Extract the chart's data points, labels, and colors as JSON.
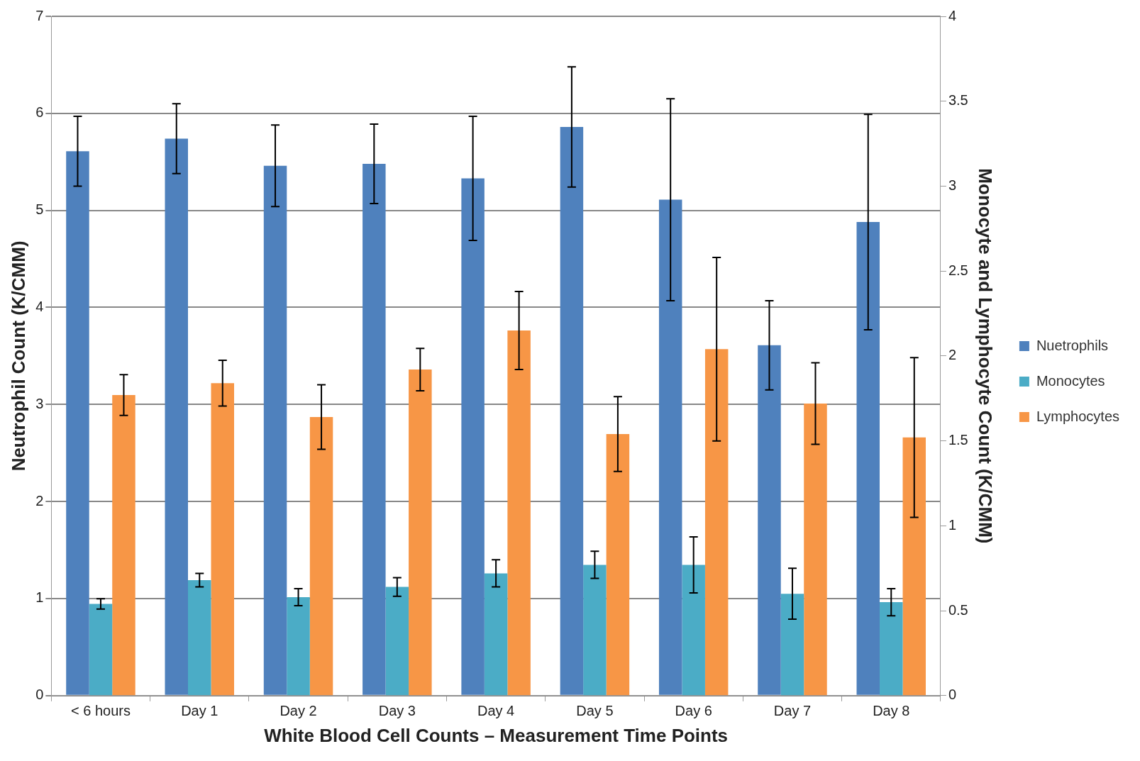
{
  "chart_data": {
    "type": "bar",
    "xlabel": "White Blood Cell Counts – Measurement Time Points",
    "ylabel": "Neutrophil Count (K/CMM)",
    "y2label": "Monocyte and Lymphocyte Count (K/CMM)",
    "categories": [
      "< 6 hours",
      "Day 1",
      "Day 2",
      "Day 3",
      "Day 4",
      "Day 5",
      "Day 6",
      "Day 7",
      "Day 8"
    ],
    "series": [
      {
        "name": "Nuetrophils",
        "color": "#4f81bd",
        "values": [
          5.61,
          5.74,
          5.46,
          5.48,
          5.33,
          5.86,
          5.11,
          3.61,
          4.88
        ],
        "errors": [
          0.36,
          0.36,
          0.42,
          0.41,
          0.64,
          0.62,
          1.04,
          0.46,
          1.11
        ]
      },
      {
        "name": "Monocytes",
        "color": "#4bacc6",
        "axis": "y2",
        "values": [
          0.54,
          0.68,
          0.58,
          0.64,
          0.72,
          0.77,
          0.77,
          0.6,
          0.55
        ],
        "errors": [
          0.03,
          0.04,
          0.05,
          0.055,
          0.08,
          0.08,
          0.165,
          0.15,
          0.08
        ]
      },
      {
        "name": "Lymphocytes",
        "color": "#f79646",
        "axis": "y2",
        "values": [
          1.77,
          1.84,
          1.64,
          1.92,
          2.15,
          1.54,
          2.04,
          1.72,
          1.52
        ],
        "errors": [
          0.12,
          0.135,
          0.19,
          0.125,
          0.23,
          0.22,
          0.54,
          0.24,
          0.47
        ]
      }
    ],
    "ylim": [
      0,
      7
    ],
    "yticks": [
      0,
      1,
      2,
      3,
      4,
      5,
      6,
      7
    ],
    "y2lim": [
      0,
      4
    ],
    "y2ticks": [
      0,
      0.5,
      1,
      1.5,
      2,
      2.5,
      3,
      3.5,
      4
    ],
    "grid": "y",
    "legend": "right"
  }
}
